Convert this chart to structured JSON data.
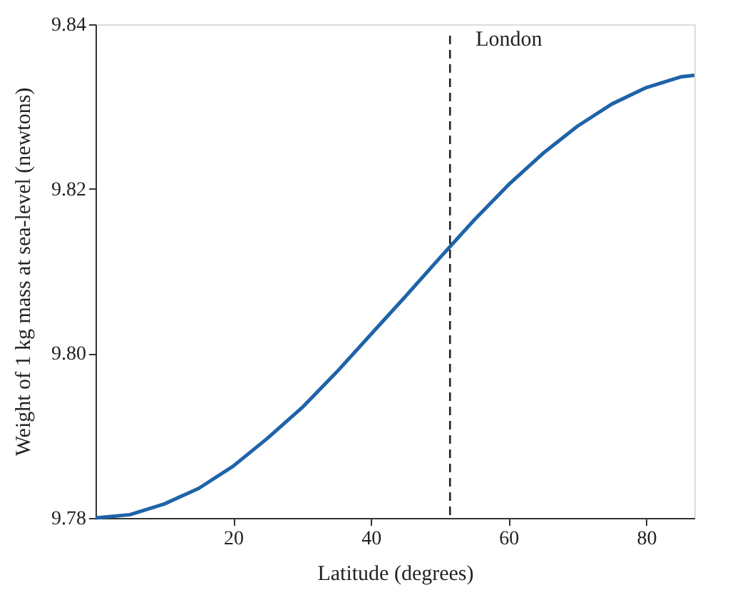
{
  "chart_data": {
    "type": "line",
    "xlabel": "Latitude (degrees)",
    "ylabel": "Weight of 1 kg mass at sea-level (newtons)",
    "x": [
      0,
      5,
      10,
      15,
      20,
      25,
      30,
      35,
      40,
      45,
      50,
      55,
      60,
      65,
      70,
      75,
      80,
      85,
      87
    ],
    "series": [
      {
        "color": "#1f63a8",
        "values": [
          9.78,
          9.7804,
          9.7817,
          9.7836,
          9.7863,
          9.7897,
          9.7934,
          9.7977,
          9.8023,
          9.8069,
          9.8116,
          9.8162,
          9.8205,
          9.8243,
          9.8276,
          9.8303,
          9.8323,
          9.8336,
          9.8338
        ]
      }
    ],
    "xlim": [
      0,
      87
    ],
    "ylim": [
      9.78,
      9.84
    ],
    "xticks": [
      20,
      40,
      60,
      80
    ],
    "yticks": [
      {
        "value": 9.78,
        "label": "9.78"
      },
      {
        "value": 9.8,
        "label": "9.80"
      },
      {
        "value": 9.82,
        "label": "9.82"
      },
      {
        "value": 9.84,
        "label": "9.84"
      }
    ],
    "ref_lines": [
      {
        "axis": "x",
        "value": 51.5,
        "label": "London",
        "line_style": "dashed",
        "color": "#222222"
      }
    ],
    "grid": false,
    "marker": "none",
    "line_style": "solid"
  }
}
